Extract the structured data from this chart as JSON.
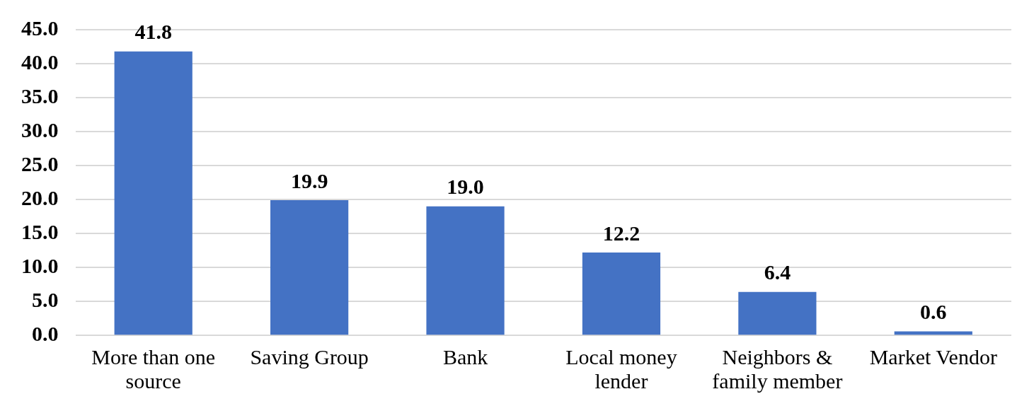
{
  "chart_data": {
    "type": "bar",
    "categories": [
      "More than one source",
      "Saving Group",
      "Bank",
      "Local money lender",
      "Neighbors & family member",
      "Market Vendor"
    ],
    "values": [
      41.8,
      19.9,
      19.0,
      12.2,
      6.4,
      0.6
    ],
    "value_labels": [
      "41.8",
      "19.9",
      "19.0",
      "12.2",
      "6.4",
      "0.6"
    ],
    "color": "#4472c4",
    "ylim": [
      0,
      45
    ],
    "yticks": [
      {
        "value": 0,
        "label": "0.0"
      },
      {
        "value": 5,
        "label": "5.0"
      },
      {
        "value": 10,
        "label": "10.0"
      },
      {
        "value": 15,
        "label": "15.0"
      },
      {
        "value": 20,
        "label": "20.0"
      },
      {
        "value": 25,
        "label": "25.0"
      },
      {
        "value": 30,
        "label": "30.0"
      },
      {
        "value": 35,
        "label": "35.0"
      },
      {
        "value": 40,
        "label": "40.0"
      },
      {
        "value": 45,
        "label": "45.0"
      }
    ],
    "grid": "y",
    "legend": false
  }
}
